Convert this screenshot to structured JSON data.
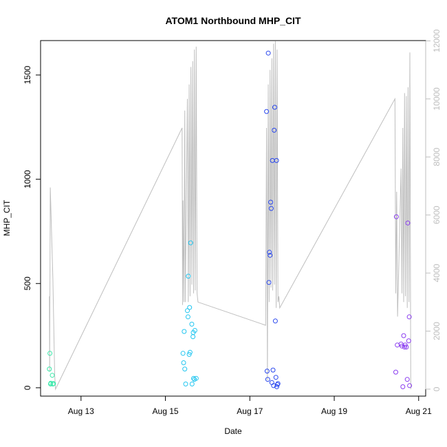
{
  "chart_data": {
    "type": "scatter",
    "title": "ATOM1 Northbound MHP_CIT",
    "xlabel": "Date",
    "ylabel": "MHP_CIT",
    "x_ticks": [
      "Aug 13",
      "Aug 15",
      "Aug 17",
      "Aug 19",
      "Aug 21"
    ],
    "x_tick_dates": [
      "2024-08-13",
      "2024-08-15",
      "2024-08-17",
      "2024-08-19",
      "2024-08-21"
    ],
    "xlim": [
      "2024-08-12 01:00",
      "2024-08-21 04:00"
    ],
    "y_ticks": [
      0,
      500,
      1000,
      1500
    ],
    "ylim": [
      -40,
      1665
    ],
    "y2_ticks": [
      0,
      2000,
      4000,
      6000,
      8000,
      10000,
      12000
    ],
    "y2lim": [
      -240,
      12010
    ],
    "grid": false,
    "legend": "none",
    "colors": {
      "line": "#bebebe",
      "right_axis": "#bebebe",
      "group_aug12": "#37e8a8",
      "group_aug15": "#22c6f0",
      "group_aug17": "#2846ee",
      "group_aug20": "#8a3cf0"
    },
    "series": [
      {
        "color_key": "group_aug12",
        "x": [
          "2024-08-12 06:00",
          "2024-08-12 06:20",
          "2024-08-12 06:40",
          "2024-08-12 06:50",
          "2024-08-12 07:40",
          "2024-08-12 08:00",
          "2024-08-12 08:20"
        ],
        "y": [
          90,
          165,
          18,
          22,
          60,
          18,
          20
        ]
      },
      {
        "color_key": "group_aug15",
        "x": [
          "2024-08-15 10:00",
          "2024-08-15 10:20",
          "2024-08-15 10:40",
          "2024-08-15 11:00",
          "2024-08-15 11:30",
          "2024-08-15 12:30",
          "2024-08-15 12:50",
          "2024-08-15 13:00",
          "2024-08-15 13:30",
          "2024-08-15 13:45",
          "2024-08-15 14:00",
          "2024-08-15 14:20",
          "2024-08-15 15:00",
          "2024-08-15 15:10",
          "2024-08-15 15:40",
          "2024-08-15 15:50",
          "2024-08-15 16:00",
          "2024-08-15 16:30",
          "2024-08-15 16:45",
          "2024-08-15 17:30"
        ],
        "y": [
          165,
          120,
          270,
          90,
          18,
          370,
          340,
          535,
          160,
          385,
          170,
          695,
          305,
          18,
          245,
          265,
          45,
          40,
          275,
          45
        ]
      },
      {
        "color_key": "group_aug17",
        "x": [
          "2024-08-17 09:30",
          "2024-08-17 09:50",
          "2024-08-17 10:10",
          "2024-08-17 10:30",
          "2024-08-17 10:50",
          "2024-08-17 11:10",
          "2024-08-17 11:30",
          "2024-08-17 11:50",
          "2024-08-17 12:10",
          "2024-08-17 12:30",
          "2024-08-17 12:50",
          "2024-08-17 13:10",
          "2024-08-17 13:30",
          "2024-08-17 13:50",
          "2024-08-17 14:10",
          "2024-08-17 14:30",
          "2024-08-17 14:50",
          "2024-08-17 15:10",
          "2024-08-17 15:20",
          "2024-08-17 15:40",
          "2024-08-17 16:00"
        ],
        "y": [
          1325,
          80,
          40,
          1605,
          505,
          650,
          635,
          890,
          860,
          25,
          1090,
          85,
          10,
          1235,
          1345,
          320,
          50,
          1090,
          5,
          15,
          20
        ]
      },
      {
        "color_key": "group_aug20",
        "x": [
          "2024-08-20 11:00",
          "2024-08-20 11:20",
          "2024-08-20 11:50",
          "2024-08-20 14:00",
          "2024-08-20 14:30",
          "2024-08-20 15:00",
          "2024-08-20 15:30",
          "2024-08-20 16:00",
          "2024-08-20 16:20",
          "2024-08-20 17:00",
          "2024-08-20 17:30",
          "2024-08-20 17:50",
          "2024-08-20 18:20",
          "2024-08-20 18:40",
          "2024-08-20 18:50"
        ],
        "y": [
          75,
          820,
          205,
          210,
          200,
          5,
          250,
          195,
          205,
          195,
          40,
          790,
          225,
          340,
          10
        ]
      }
    ],
    "secondary_line": {
      "axis": "right",
      "x": [
        "2024-08-12 06:00",
        "2024-08-12 06:10",
        "2024-08-12 06:30",
        "2024-08-12 08:00",
        "2024-08-12 09:00",
        "2024-08-12 09:30",
        "2024-08-15 09:30",
        "2024-08-15 09:45",
        "2024-08-15 10:00",
        "2024-08-15 10:30",
        "2024-08-15 11:00",
        "2024-08-15 11:20",
        "2024-08-15 12:30",
        "2024-08-15 13:00",
        "2024-08-15 13:30",
        "2024-08-15 14:00",
        "2024-08-15 14:30",
        "2024-08-15 15:00",
        "2024-08-15 15:30",
        "2024-08-15 16:00",
        "2024-08-15 16:30",
        "2024-08-15 17:00",
        "2024-08-15 17:30",
        "2024-08-15 18:00",
        "2024-08-15 18:30",
        "2024-08-17 09:00",
        "2024-08-17 09:30",
        "2024-08-17 10:00",
        "2024-08-17 10:30",
        "2024-08-17 11:00",
        "2024-08-17 11:30",
        "2024-08-17 12:00",
        "2024-08-17 12:30",
        "2024-08-17 13:00",
        "2024-08-17 13:30",
        "2024-08-17 14:00",
        "2024-08-17 14:30",
        "2024-08-17 15:00",
        "2024-08-17 15:30",
        "2024-08-17 16:00",
        "2024-08-17 16:30",
        "2024-08-17 17:00",
        "2024-08-20 10:30",
        "2024-08-20 11:00",
        "2024-08-20 11:30",
        "2024-08-20 12:00",
        "2024-08-20 14:00",
        "2024-08-20 14:30",
        "2024-08-20 15:00",
        "2024-08-20 15:30",
        "2024-08-20 16:00",
        "2024-08-20 16:30",
        "2024-08-20 17:00",
        "2024-08-20 17:30",
        "2024-08-20 18:00",
        "2024-08-20 18:30",
        "2024-08-20 19:00",
        "2024-08-20 19:30"
      ],
      "y": [
        3200,
        600,
        6950,
        3800,
        500,
        0,
        9000,
        2900,
        6500,
        3000,
        9600,
        3000,
        10000,
        3000,
        10500,
        3200,
        11100,
        3600,
        11300,
        3300,
        11700,
        3400,
        11800,
        3300,
        3000,
        2200,
        9000,
        300,
        10500,
        3000,
        11000,
        3500,
        11400,
        3400,
        11900,
        3600,
        12000,
        2800,
        11700,
        3000,
        3200,
        2800,
        10000,
        3300,
        6800,
        2500,
        7600,
        3300,
        9000,
        3000,
        10200,
        3200,
        10100,
        2800,
        10400,
        3000,
        11600,
        0
      ]
    }
  }
}
